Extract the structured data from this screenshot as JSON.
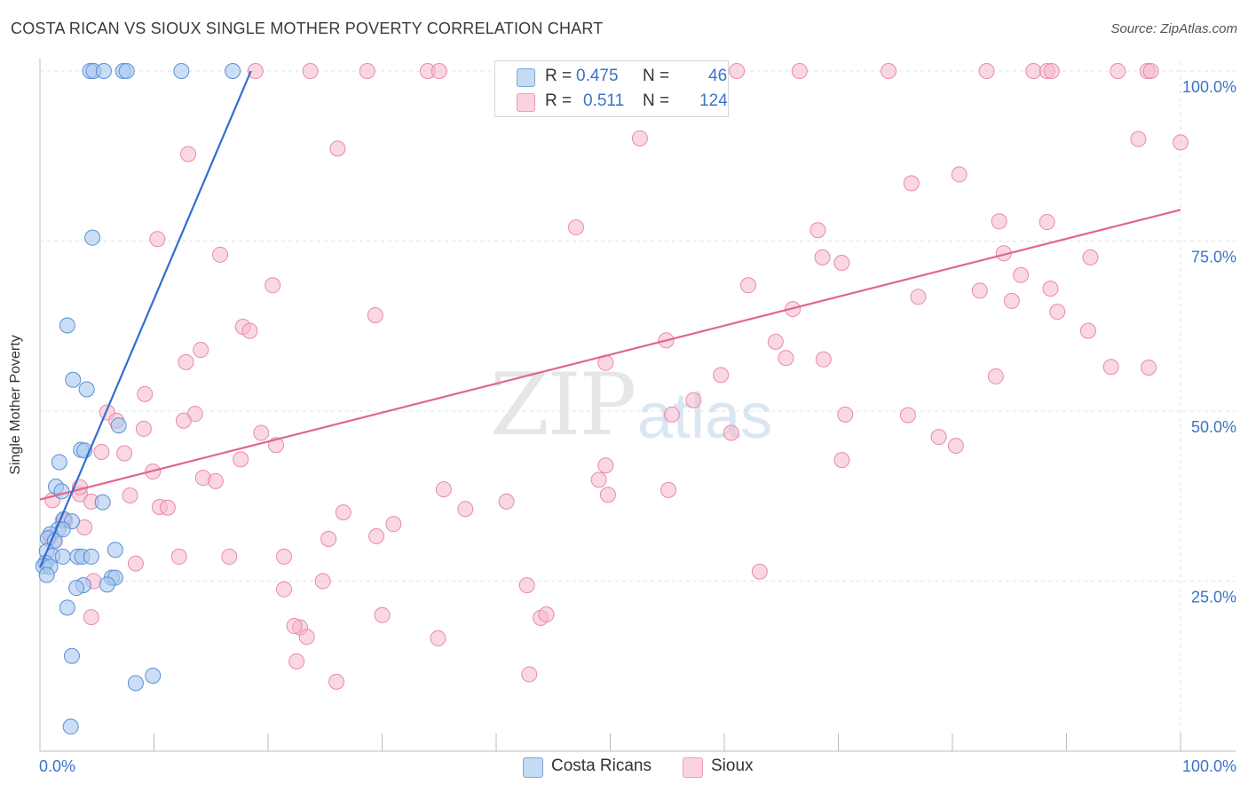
{
  "header": {
    "title": "COSTA RICAN VS SIOUX SINGLE MOTHER POVERTY CORRELATION CHART",
    "source": "Source: ZipAtlas.com"
  },
  "watermark": {
    "zip": "ZIP",
    "atlas": "atlas"
  },
  "legend": {
    "rows": [
      {
        "r_label": "R =",
        "r_value": "0.475",
        "n_label": "N =",
        "n_value": "46",
        "color": "#a9c8ee"
      },
      {
        "r_label": "R =",
        "r_value": "0.511",
        "n_label": "N =",
        "n_value": "124",
        "color": "#f6b8cb"
      }
    ]
  },
  "bottom_legend": [
    {
      "label": "Costa Ricans",
      "color": "#a9c8ee"
    },
    {
      "label": "Sioux",
      "color": "#f6b8cb"
    }
  ],
  "chart_data": {
    "type": "scatter",
    "title": "COSTA RICAN VS SIOUX SINGLE MOTHER POVERTY CORRELATION CHART",
    "xlabel": "",
    "ylabel": "Single Mother Poverty",
    "xlim": [
      0,
      100
    ],
    "ylim": [
      0,
      100
    ],
    "x_tick_labels": [
      "0.0%",
      "100.0%"
    ],
    "y_tick_labels": [
      {
        "value": 100,
        "label": "100.0%"
      },
      {
        "value": 75,
        "label": "75.0%"
      },
      {
        "value": 50,
        "label": "50.0%"
      },
      {
        "value": 25,
        "label": "25.0%"
      }
    ],
    "grid": true,
    "colors": {
      "costa_fill": "#a9c8ee",
      "costa_stroke": "#5b8fd6",
      "costa_line": "#2f6fd0",
      "sioux_fill": "#f6b8cb",
      "sioux_stroke": "#e88aa8",
      "sioux_line": "#e0668f",
      "tick_label": "#3b73c8"
    },
    "series": [
      {
        "name": "Costa Ricans",
        "trend": {
          "x0": 0.0,
          "y0": 27.0,
          "x1": 18.5,
          "y1": 100.0
        },
        "points": [
          [
            4.4,
            100
          ],
          [
            4.7,
            100
          ],
          [
            5.6,
            100
          ],
          [
            7.3,
            100
          ],
          [
            7.6,
            100
          ],
          [
            12.4,
            100
          ],
          [
            16.9,
            100
          ],
          [
            4.6,
            75.5
          ],
          [
            2.4,
            62.6
          ],
          [
            2.9,
            54.6
          ],
          [
            4.1,
            53.2
          ],
          [
            6.9,
            47.9
          ],
          [
            3.6,
            44.3
          ],
          [
            3.9,
            44.2
          ],
          [
            1.7,
            42.5
          ],
          [
            1.4,
            38.9
          ],
          [
            1.9,
            38.2
          ],
          [
            5.5,
            36.6
          ],
          [
            2.1,
            34.1
          ],
          [
            2.8,
            33.8
          ],
          [
            1.6,
            32.6
          ],
          [
            2.0,
            32.6
          ],
          [
            0.9,
            31.9
          ],
          [
            0.7,
            31.3
          ],
          [
            1.3,
            30.9
          ],
          [
            0.6,
            29.4
          ],
          [
            1.1,
            28.7
          ],
          [
            2.0,
            28.6
          ],
          [
            3.3,
            28.6
          ],
          [
            3.7,
            28.6
          ],
          [
            4.5,
            28.6
          ],
          [
            6.6,
            29.6
          ],
          [
            0.5,
            27.7
          ],
          [
            0.3,
            27.2
          ],
          [
            0.9,
            27.1
          ],
          [
            0.6,
            25.9
          ],
          [
            6.3,
            25.5
          ],
          [
            6.6,
            25.5
          ],
          [
            3.8,
            24.4
          ],
          [
            5.9,
            24.5
          ],
          [
            3.2,
            24.0
          ],
          [
            2.4,
            21.1
          ],
          [
            2.8,
            14.0
          ],
          [
            9.9,
            11.1
          ],
          [
            8.4,
            10.0
          ],
          [
            2.7,
            3.6
          ]
        ]
      },
      {
        "name": "Sioux",
        "trend": {
          "x0": 0.0,
          "y0": 37.0,
          "x1": 100.0,
          "y1": 79.6
        },
        "points": [
          [
            18.9,
            100
          ],
          [
            23.7,
            100
          ],
          [
            28.7,
            100
          ],
          [
            34.0,
            100
          ],
          [
            35.0,
            100
          ],
          [
            52.4,
            100
          ],
          [
            53.4,
            100
          ],
          [
            57.2,
            100
          ],
          [
            61.1,
            100
          ],
          [
            66.6,
            100
          ],
          [
            74.4,
            100
          ],
          [
            83.0,
            100
          ],
          [
            87.1,
            100
          ],
          [
            88.3,
            100
          ],
          [
            88.7,
            100
          ],
          [
            94.5,
            100
          ],
          [
            97.1,
            100
          ],
          [
            97.4,
            100
          ],
          [
            52.6,
            90.1
          ],
          [
            96.3,
            90.0
          ],
          [
            100.0,
            89.5
          ],
          [
            13.0,
            87.8
          ],
          [
            26.1,
            88.6
          ],
          [
            76.4,
            83.5
          ],
          [
            80.6,
            84.8
          ],
          [
            84.1,
            77.9
          ],
          [
            88.3,
            77.8
          ],
          [
            47.0,
            77.0
          ],
          [
            68.2,
            76.6
          ],
          [
            10.3,
            75.3
          ],
          [
            15.8,
            73.0
          ],
          [
            84.5,
            73.2
          ],
          [
            92.1,
            72.6
          ],
          [
            68.6,
            72.6
          ],
          [
            70.3,
            71.8
          ],
          [
            86.0,
            70.0
          ],
          [
            20.4,
            68.5
          ],
          [
            62.1,
            68.5
          ],
          [
            82.4,
            67.7
          ],
          [
            88.6,
            68.0
          ],
          [
            77.0,
            66.8
          ],
          [
            85.2,
            66.2
          ],
          [
            66.0,
            65.0
          ],
          [
            89.2,
            64.6
          ],
          [
            29.4,
            64.1
          ],
          [
            17.8,
            62.4
          ],
          [
            18.4,
            61.8
          ],
          [
            91.9,
            61.8
          ],
          [
            54.9,
            60.4
          ],
          [
            64.5,
            60.2
          ],
          [
            14.1,
            59.0
          ],
          [
            12.8,
            57.2
          ],
          [
            49.6,
            57.1
          ],
          [
            65.4,
            57.8
          ],
          [
            68.7,
            57.6
          ],
          [
            93.9,
            56.5
          ],
          [
            97.2,
            56.4
          ],
          [
            59.7,
            55.3
          ],
          [
            83.8,
            55.1
          ],
          [
            9.2,
            52.5
          ],
          [
            57.3,
            51.6
          ],
          [
            13.6,
            49.6
          ],
          [
            5.9,
            49.8
          ],
          [
            70.6,
            49.5
          ],
          [
            76.1,
            49.4
          ],
          [
            55.4,
            49.5
          ],
          [
            12.6,
            48.6
          ],
          [
            6.7,
            48.6
          ],
          [
            9.1,
            47.4
          ],
          [
            60.6,
            46.8
          ],
          [
            19.4,
            46.8
          ],
          [
            78.8,
            46.2
          ],
          [
            20.7,
            45.0
          ],
          [
            80.3,
            44.9
          ],
          [
            5.4,
            44.0
          ],
          [
            7.4,
            43.8
          ],
          [
            17.6,
            42.9
          ],
          [
            70.3,
            42.8
          ],
          [
            49.6,
            42.0
          ],
          [
            9.9,
            41.1
          ],
          [
            14.3,
            40.2
          ],
          [
            15.4,
            39.7
          ],
          [
            49.0,
            39.9
          ],
          [
            35.4,
            38.5
          ],
          [
            55.1,
            38.4
          ],
          [
            49.8,
            37.7
          ],
          [
            3.5,
            37.8
          ],
          [
            3.5,
            38.8
          ],
          [
            7.9,
            37.6
          ],
          [
            1.1,
            36.9
          ],
          [
            4.5,
            36.7
          ],
          [
            10.5,
            35.9
          ],
          [
            11.2,
            35.8
          ],
          [
            26.6,
            35.1
          ],
          [
            37.3,
            35.6
          ],
          [
            40.9,
            36.7
          ],
          [
            2.2,
            33.9
          ],
          [
            2.0,
            33.9
          ],
          [
            3.9,
            32.9
          ],
          [
            31.0,
            33.4
          ],
          [
            0.9,
            31.5
          ],
          [
            1.2,
            31.0
          ],
          [
            25.3,
            31.2
          ],
          [
            29.5,
            31.6
          ],
          [
            8.4,
            27.6
          ],
          [
            12.2,
            28.6
          ],
          [
            16.6,
            28.6
          ],
          [
            21.4,
            28.6
          ],
          [
            63.1,
            26.4
          ],
          [
            4.7,
            25.0
          ],
          [
            24.8,
            25.0
          ],
          [
            42.7,
            24.4
          ],
          [
            21.4,
            23.8
          ],
          [
            4.5,
            19.7
          ],
          [
            30.0,
            20.0
          ],
          [
            43.9,
            19.6
          ],
          [
            44.4,
            20.1
          ],
          [
            22.8,
            18.2
          ],
          [
            23.4,
            16.8
          ],
          [
            34.9,
            16.6
          ],
          [
            22.5,
            13.2
          ],
          [
            26.0,
            10.2
          ],
          [
            42.9,
            11.3
          ],
          [
            22.3,
            18.4
          ]
        ]
      }
    ]
  }
}
